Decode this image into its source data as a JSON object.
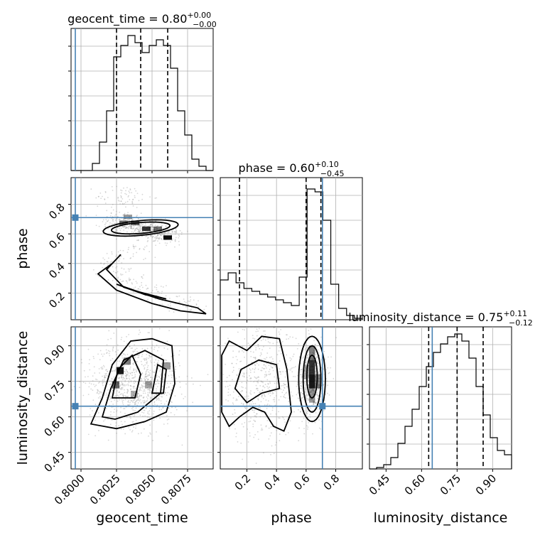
{
  "chart_data": {
    "type": "corner",
    "truth_color": "#4682b4",
    "parameters": [
      {
        "name": "geocent_time",
        "xlabel": "geocent_time",
        "title": {
          "label": "geocent_time = 0.80",
          "upper": "+0.00",
          "lower": "−0.00"
        },
        "range": [
          0.7993,
          0.8093
        ],
        "ticks": [
          {
            "v": 0.8,
            "label": "0.8000"
          },
          {
            "v": 0.8025,
            "label": "0.8025"
          },
          {
            "v": 0.805,
            "label": "0.8050"
          },
          {
            "v": 0.8075,
            "label": "0.8075"
          }
        ],
        "truth": 0.7996,
        "quantiles": [
          0.8025,
          0.8042,
          0.8061
        ],
        "hist": [
          0,
          0,
          0,
          0.05,
          0.2,
          0.42,
          0.8,
          0.88,
          0.95,
          0.9,
          0.83,
          0.88,
          0.92,
          0.88,
          0.72,
          0.42,
          0.25,
          0.08,
          0.03,
          0
        ]
      },
      {
        "name": "phase",
        "xlabel": "phase",
        "ylabel": "phase",
        "title": {
          "label": "phase = 0.60",
          "upper": "+0.10",
          "lower": "−0.45"
        },
        "range": [
          0.02,
          0.98
        ],
        "ticks": [
          {
            "v": 0.2,
            "label": "0.2"
          },
          {
            "v": 0.4,
            "label": "0.4"
          },
          {
            "v": 0.6,
            "label": "0.6"
          },
          {
            "v": 0.8,
            "label": "0.8"
          }
        ],
        "truth": 0.71,
        "quantiles": [
          0.15,
          0.6,
          0.7
        ],
        "hist": [
          0.28,
          0.33,
          0.26,
          0.22,
          0.2,
          0.18,
          0.16,
          0.14,
          0.12,
          0.1,
          0.3,
          0.92,
          0.9,
          0.7,
          0.25,
          0.08,
          0.03,
          0.01
        ]
      },
      {
        "name": "luminosity_distance",
        "xlabel": "luminosity_distance",
        "ylabel": "luminosity_distance",
        "title": {
          "label": "luminosity_distance = 0.75",
          "upper": "+0.11",
          "lower": "−0.12"
        },
        "range": [
          0.38,
          0.98
        ],
        "ticks": [
          {
            "v": 0.45,
            "label": "0.45"
          },
          {
            "v": 0.6,
            "label": "0.60"
          },
          {
            "v": 0.75,
            "label": "0.75"
          },
          {
            "v": 0.9,
            "label": "0.90"
          }
        ],
        "truth": 0.645,
        "quantiles": [
          0.63,
          0.75,
          0.86
        ],
        "hist": [
          0,
          0.01,
          0.03,
          0.08,
          0.18,
          0.3,
          0.42,
          0.58,
          0.72,
          0.82,
          0.88,
          0.93,
          0.95,
          0.9,
          0.78,
          0.58,
          0.38,
          0.22,
          0.13,
          0.1
        ]
      }
    ]
  }
}
